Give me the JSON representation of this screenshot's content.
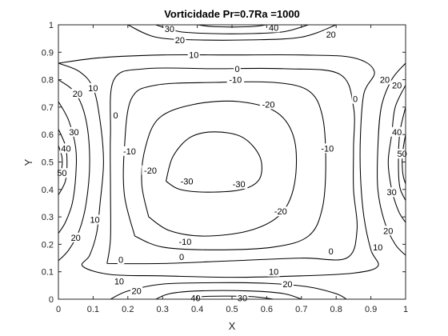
{
  "chart_data": {
    "type": "contour",
    "title": "Vorticidade Pr=0.7Ra =1000",
    "xlabel": "X",
    "ylabel": "Y",
    "xlim": [
      0,
      1
    ],
    "ylim": [
      0,
      1
    ],
    "xticks": [
      "0",
      "0.1",
      "0.2",
      "0.3",
      "0.4",
      "0.5",
      "0.6",
      "0.7",
      "0.8",
      "0.9",
      "1"
    ],
    "yticks": [
      "0",
      "0.1",
      "0.2",
      "0.3",
      "0.4",
      "0.5",
      "0.6",
      "0.7",
      "0.8",
      "0.9",
      "1"
    ],
    "grid": false,
    "levels": [
      -30,
      -20,
      -10,
      0,
      10,
      20,
      30,
      40,
      50
    ],
    "contours": [
      {
        "level": -30,
        "label": "-30",
        "points": [
          [
            0.31,
            0.43
          ],
          [
            0.35,
            0.4
          ],
          [
            0.43,
            0.39
          ],
          [
            0.53,
            0.4
          ],
          [
            0.58,
            0.44
          ],
          [
            0.58,
            0.52
          ],
          [
            0.53,
            0.59
          ],
          [
            0.45,
            0.61
          ],
          [
            0.38,
            0.59
          ],
          [
            0.33,
            0.52
          ],
          [
            0.31,
            0.43
          ]
        ]
      },
      {
        "level": -20,
        "label": "-20",
        "points": [
          [
            0.26,
            0.3
          ],
          [
            0.32,
            0.25
          ],
          [
            0.42,
            0.23
          ],
          [
            0.55,
            0.25
          ],
          [
            0.64,
            0.31
          ],
          [
            0.68,
            0.42
          ],
          [
            0.68,
            0.58
          ],
          [
            0.63,
            0.68
          ],
          [
            0.52,
            0.72
          ],
          [
            0.39,
            0.71
          ],
          [
            0.29,
            0.66
          ],
          [
            0.25,
            0.55
          ],
          [
            0.24,
            0.42
          ],
          [
            0.26,
            0.3
          ]
        ]
      },
      {
        "level": -10,
        "label": "-10",
        "points": [
          [
            0.22,
            0.23
          ],
          [
            0.3,
            0.19
          ],
          [
            0.45,
            0.18
          ],
          [
            0.62,
            0.19
          ],
          [
            0.72,
            0.23
          ],
          [
            0.76,
            0.33
          ],
          [
            0.77,
            0.5
          ],
          [
            0.76,
            0.67
          ],
          [
            0.72,
            0.76
          ],
          [
            0.62,
            0.79
          ],
          [
            0.45,
            0.79
          ],
          [
            0.28,
            0.78
          ],
          [
            0.21,
            0.73
          ],
          [
            0.19,
            0.55
          ],
          [
            0.19,
            0.38
          ],
          [
            0.22,
            0.23
          ]
        ]
      },
      {
        "level": 0,
        "label": "0",
        "points": [
          [
            0.14,
            0.13
          ],
          [
            0.3,
            0.13
          ],
          [
            0.5,
            0.14
          ],
          [
            0.7,
            0.15
          ],
          [
            0.83,
            0.15
          ],
          [
            0.86,
            0.25
          ],
          [
            0.85,
            0.4
          ],
          [
            0.85,
            0.55
          ],
          [
            0.85,
            0.7
          ],
          [
            0.81,
            0.82
          ],
          [
            0.65,
            0.84
          ],
          [
            0.45,
            0.84
          ],
          [
            0.25,
            0.84
          ],
          [
            0.16,
            0.8
          ],
          [
            0.15,
            0.6
          ],
          [
            0.15,
            0.4
          ],
          [
            0.15,
            0.22
          ],
          [
            0.14,
            0.13
          ]
        ]
      },
      {
        "level": 10,
        "label": "10",
        "points": [
          [
            0.0,
            0.86
          ],
          [
            0.06,
            0.83
          ],
          [
            0.1,
            0.77
          ],
          [
            0.12,
            0.65
          ],
          [
            0.13,
            0.5
          ],
          [
            0.12,
            0.35
          ],
          [
            0.11,
            0.24
          ],
          [
            0.09,
            0.16
          ],
          [
            0.07,
            0.12
          ],
          [
            0.15,
            0.09
          ],
          [
            0.3,
            0.085
          ],
          [
            0.5,
            0.08
          ],
          [
            0.7,
            0.085
          ],
          [
            0.85,
            0.095
          ],
          [
            0.92,
            0.12
          ],
          [
            0.9,
            0.18
          ],
          [
            0.88,
            0.3
          ],
          [
            0.87,
            0.45
          ],
          [
            0.87,
            0.6
          ],
          [
            0.88,
            0.75
          ],
          [
            0.91,
            0.83
          ],
          [
            0.85,
            0.88
          ],
          [
            0.7,
            0.89
          ],
          [
            0.5,
            0.89
          ],
          [
            0.3,
            0.89
          ],
          [
            0.12,
            0.88
          ],
          [
            0.0,
            0.86
          ]
        ]
      },
      {
        "level": 20,
        "label": "20",
        "points": [
          [
            0.0,
            0.8
          ],
          [
            0.05,
            0.75
          ],
          [
            0.08,
            0.65
          ],
          [
            0.09,
            0.5
          ],
          [
            0.08,
            0.35
          ],
          [
            0.06,
            0.25
          ],
          [
            0.03,
            0.18
          ],
          [
            0.0,
            0.14
          ]
        ]
      },
      {
        "level": 30,
        "label": "30",
        "points": [
          [
            0.0,
            0.72
          ],
          [
            0.03,
            0.65
          ],
          [
            0.05,
            0.55
          ],
          [
            0.05,
            0.45
          ],
          [
            0.04,
            0.35
          ],
          [
            0.02,
            0.28
          ],
          [
            0.0,
            0.24
          ]
        ]
      },
      {
        "level": 40,
        "label": "40",
        "points": [
          [
            0.0,
            0.62
          ],
          [
            0.02,
            0.56
          ],
          [
            0.025,
            0.5
          ],
          [
            0.02,
            0.43
          ],
          [
            0.0,
            0.38
          ]
        ]
      },
      {
        "level": 50,
        "label": "50",
        "points": [
          [
            0.0,
            0.56
          ],
          [
            0.01,
            0.52
          ],
          [
            0.01,
            0.48
          ],
          [
            0.0,
            0.44
          ]
        ]
      },
      {
        "level": 20,
        "label": "20",
        "points": [
          [
            1.0,
            0.86
          ],
          [
            0.96,
            0.8
          ],
          [
            0.93,
            0.7
          ],
          [
            0.92,
            0.55
          ],
          [
            0.92,
            0.4
          ],
          [
            0.94,
            0.28
          ],
          [
            0.97,
            0.2
          ],
          [
            1.0,
            0.16
          ]
        ]
      },
      {
        "level": 30,
        "label": "30",
        "points": [
          [
            1.0,
            0.78
          ],
          [
            0.97,
            0.7
          ],
          [
            0.96,
            0.6
          ],
          [
            0.95,
            0.5
          ],
          [
            0.96,
            0.4
          ],
          [
            0.98,
            0.32
          ],
          [
            1.0,
            0.28
          ]
        ]
      },
      {
        "level": 40,
        "label": "40",
        "points": [
          [
            1.0,
            0.7
          ],
          [
            0.985,
            0.62
          ],
          [
            0.98,
            0.55
          ],
          [
            0.98,
            0.45
          ],
          [
            0.985,
            0.4
          ],
          [
            1.0,
            0.36
          ]
        ]
      },
      {
        "level": 50,
        "label": "50",
        "points": [
          [
            1.0,
            0.6
          ],
          [
            0.993,
            0.55
          ],
          [
            0.99,
            0.5
          ],
          [
            0.993,
            0.45
          ],
          [
            1.0,
            0.42
          ]
        ]
      },
      {
        "level": 20,
        "label": "20",
        "points": [
          [
            0.2,
            1.0
          ],
          [
            0.28,
            0.955
          ],
          [
            0.4,
            0.945
          ],
          [
            0.55,
            0.945
          ],
          [
            0.7,
            0.955
          ],
          [
            0.8,
            1.0
          ]
        ]
      },
      {
        "level": 30,
        "label": "30",
        "points": [
          [
            0.28,
            1.0
          ],
          [
            0.35,
            0.975
          ],
          [
            0.45,
            0.968
          ],
          [
            0.55,
            0.968
          ],
          [
            0.65,
            0.975
          ],
          [
            0.72,
            1.0
          ]
        ]
      },
      {
        "level": 40,
        "label": "40",
        "points": [
          [
            0.4,
            1.0
          ],
          [
            0.45,
            0.993
          ],
          [
            0.55,
            0.993
          ],
          [
            0.6,
            1.0
          ]
        ]
      },
      {
        "level": 20,
        "label": "20",
        "points": [
          [
            0.15,
            0.0
          ],
          [
            0.2,
            0.03
          ],
          [
            0.3,
            0.055
          ],
          [
            0.45,
            0.06
          ],
          [
            0.6,
            0.058
          ],
          [
            0.72,
            0.045
          ],
          [
            0.8,
            0.02
          ],
          [
            0.83,
            0.0
          ]
        ]
      },
      {
        "level": 30,
        "label": "30",
        "points": [
          [
            0.28,
            0.0
          ],
          [
            0.32,
            0.02
          ],
          [
            0.4,
            0.03
          ],
          [
            0.55,
            0.03
          ],
          [
            0.65,
            0.02
          ],
          [
            0.7,
            0.0
          ]
        ]
      },
      {
        "level": 40,
        "label": "40",
        "points": [
          [
            0.38,
            0.0
          ],
          [
            0.42,
            0.01
          ],
          [
            0.55,
            0.01
          ],
          [
            0.62,
            0.0
          ]
        ]
      }
    ],
    "labels": [
      {
        "text": "-30",
        "x": 0.37,
        "y": 0.43
      },
      {
        "text": "-30",
        "x": 0.52,
        "y": 0.42
      },
      {
        "text": "-20",
        "x": 0.605,
        "y": 0.71
      },
      {
        "text": "-20",
        "x": 0.265,
        "y": 0.47
      },
      {
        "text": "-20",
        "x": 0.64,
        "y": 0.32
      },
      {
        "text": "-10",
        "x": 0.51,
        "y": 0.8
      },
      {
        "text": "-10",
        "x": 0.205,
        "y": 0.54
      },
      {
        "text": "-10",
        "x": 0.775,
        "y": 0.55
      },
      {
        "text": "-10",
        "x": 0.365,
        "y": 0.21
      },
      {
        "text": "0",
        "x": 0.515,
        "y": 0.84
      },
      {
        "text": "0",
        "x": 0.165,
        "y": 0.67
      },
      {
        "text": "0",
        "x": 0.855,
        "y": 0.73
      },
      {
        "text": "0",
        "x": 0.18,
        "y": 0.145
      },
      {
        "text": "0",
        "x": 0.355,
        "y": 0.155
      },
      {
        "text": "0",
        "x": 0.785,
        "y": 0.175
      },
      {
        "text": "10",
        "x": 0.39,
        "y": 0.89
      },
      {
        "text": "10",
        "x": 0.1,
        "y": 0.77
      },
      {
        "text": "10",
        "x": 0.105,
        "y": 0.29
      },
      {
        "text": "10",
        "x": 0.92,
        "y": 0.19
      },
      {
        "text": "10",
        "x": 0.62,
        "y": 0.1
      },
      {
        "text": "10",
        "x": 0.175,
        "y": 0.065
      },
      {
        "text": "20",
        "x": 0.35,
        "y": 0.945
      },
      {
        "text": "20",
        "x": 0.785,
        "y": 0.965
      },
      {
        "text": "20",
        "x": 0.055,
        "y": 0.75
      },
      {
        "text": "20",
        "x": 0.05,
        "y": 0.225
      },
      {
        "text": "20",
        "x": 0.94,
        "y": 0.8
      },
      {
        "text": "20",
        "x": 0.95,
        "y": 0.25
      },
      {
        "text": "20",
        "x": 0.66,
        "y": 0.055
      },
      {
        "text": "20",
        "x": 0.225,
        "y": 0.03
      },
      {
        "text": "30",
        "x": 0.32,
        "y": 0.985
      },
      {
        "text": "30",
        "x": 0.045,
        "y": 0.61
      },
      {
        "text": "30",
        "x": 0.96,
        "y": 0.39
      },
      {
        "text": "30",
        "x": 0.53,
        "y": 0.005
      },
      {
        "text": "40",
        "x": 0.62,
        "y": 0.99
      },
      {
        "text": "40",
        "x": 0.022,
        "y": 0.55
      },
      {
        "text": "40",
        "x": 0.975,
        "y": 0.61
      },
      {
        "text": "40",
        "x": 0.395,
        "y": 0.005
      },
      {
        "text": "50",
        "x": 0.01,
        "y": 0.46
      },
      {
        "text": "50",
        "x": 0.99,
        "y": 0.53
      },
      {
        "text": "20",
        "x": 0.975,
        "y": 0.78
      }
    ]
  }
}
